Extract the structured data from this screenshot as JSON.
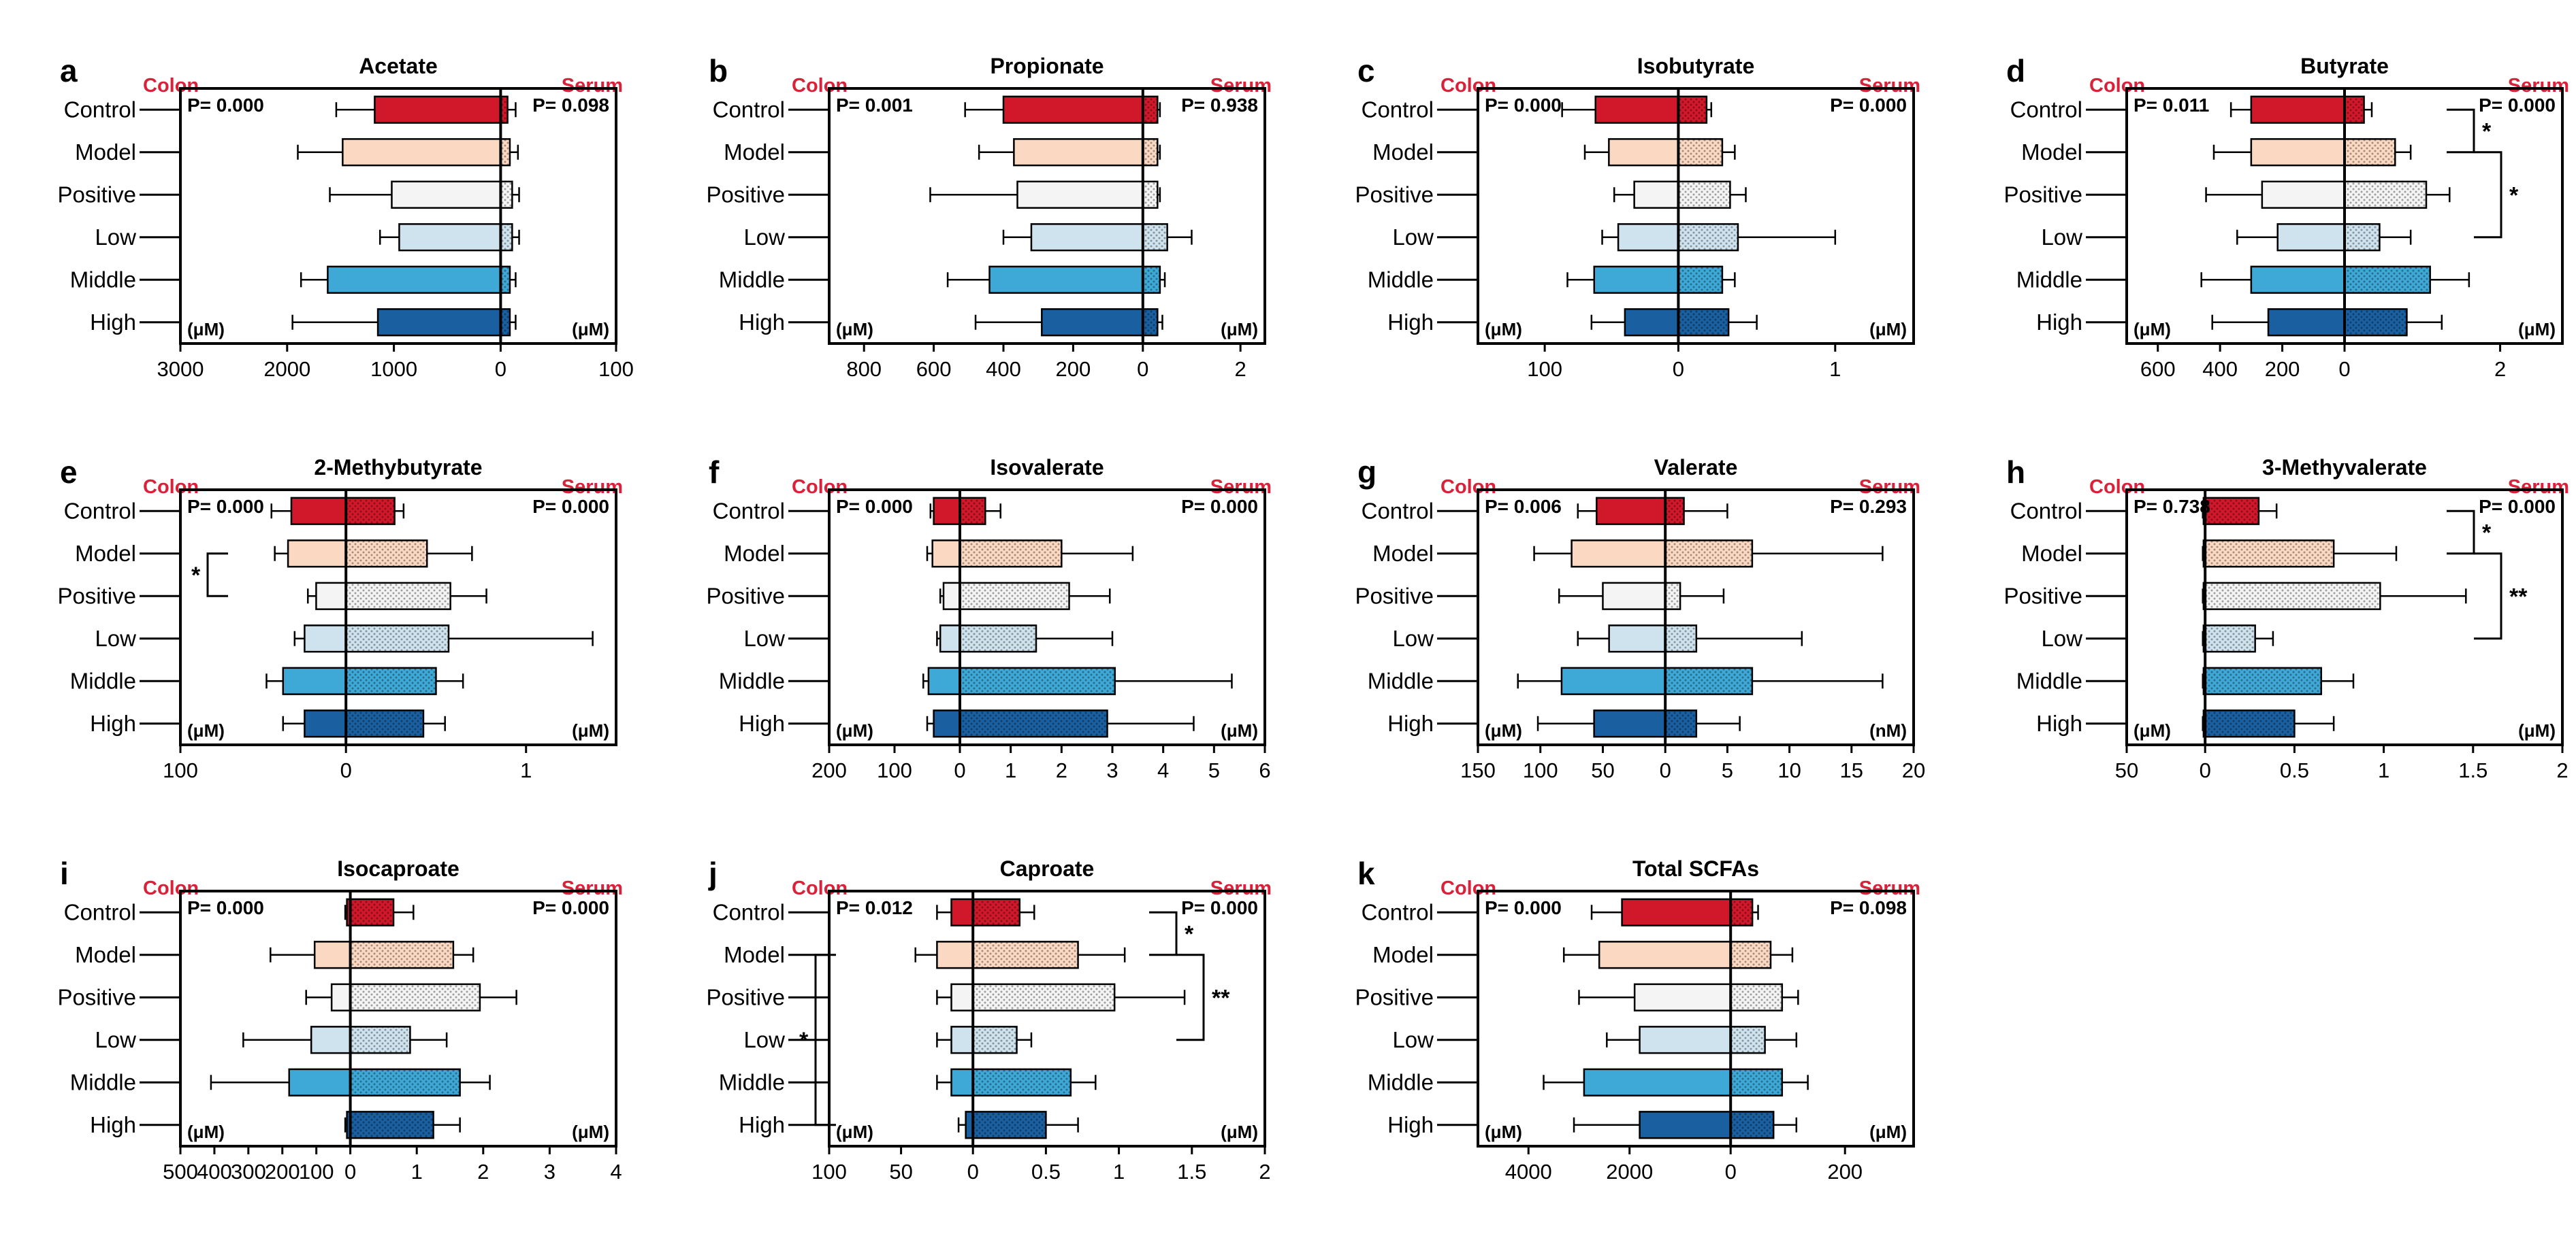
{
  "figure": {
    "groups": [
      "Control",
      "Model",
      "Positive",
      "Low",
      "Middle",
      "High"
    ],
    "colors": [
      "#d0182a",
      "#fbd8c2",
      "#f4f4f4",
      "#cfe3ef",
      "#3ea8d6",
      "#1a5f9f"
    ],
    "accent_color": "#d9213a",
    "colon_label": "Colon",
    "serum_label": "Serum"
  },
  "chart_data": [
    {
      "letter": "a",
      "title": "Acetate",
      "type": "bar",
      "colon_p": "P= 0.000",
      "serum_p": "P= 0.098",
      "colon_unit": "(μM)",
      "serum_unit": "(μM)",
      "colon": {
        "xlim": [
          3000,
          0
        ],
        "ticks": [
          3000,
          2000,
          1000,
          0
        ],
        "values": [
          1180,
          1480,
          1020,
          950,
          1620,
          1150
        ],
        "errors": [
          360,
          420,
          580,
          180,
          250,
          800
        ]
      },
      "serum": {
        "xlim": [
          0,
          100
        ],
        "ticks": [
          100
        ],
        "values": [
          6,
          8,
          10,
          10,
          8,
          8
        ],
        "errors": [
          7,
          7,
          6,
          6,
          5,
          5
        ]
      },
      "brackets": []
    },
    {
      "letter": "b",
      "title": "Propionate",
      "type": "bar",
      "colon_p": "P= 0.001",
      "serum_p": "P= 0.938",
      "colon_unit": "(μM)",
      "serum_unit": "(μM)",
      "colon": {
        "xlim": [
          900,
          0
        ],
        "ticks": [
          800,
          600,
          400,
          200,
          0
        ],
        "values": [
          400,
          370,
          360,
          320,
          440,
          290
        ],
        "errors": [
          110,
          100,
          250,
          80,
          120,
          190
        ]
      },
      "serum": {
        "xlim": [
          0,
          2.5
        ],
        "ticks": [
          2
        ],
        "values": [
          0.3,
          0.3,
          0.3,
          0.5,
          0.35,
          0.3
        ],
        "errors": [
          0.05,
          0.05,
          0.05,
          0.5,
          0.1,
          0.1
        ]
      },
      "brackets": []
    },
    {
      "letter": "c",
      "title": "Isobutyrate",
      "type": "bar",
      "colon_p": "P= 0.000",
      "serum_p": "P= 0.000",
      "colon_unit": "(μM)",
      "serum_unit": "(μM)",
      "colon": {
        "xlim": [
          150,
          0
        ],
        "ticks": [
          100,
          0
        ],
        "values": [
          62,
          52,
          33,
          45,
          63,
          40
        ],
        "errors": [
          25,
          18,
          15,
          12,
          20,
          25
        ]
      },
      "serum": {
        "xlim": [
          0,
          1.5
        ],
        "ticks": [
          1
        ],
        "values": [
          0.18,
          0.28,
          0.33,
          0.38,
          0.28,
          0.32
        ],
        "errors": [
          0.03,
          0.08,
          0.1,
          0.62,
          0.08,
          0.18
        ]
      },
      "brackets": []
    },
    {
      "letter": "d",
      "title": "Butyrate",
      "type": "bar",
      "colon_p": "P= 0.011",
      "serum_p": "P= 0.000",
      "colon_unit": "(μM)",
      "serum_unit": "(μM)",
      "colon": {
        "xlim": [
          700,
          0
        ],
        "ticks": [
          600,
          400,
          200,
          0
        ],
        "values": [
          300,
          300,
          265,
          215,
          300,
          245
        ],
        "errors": [
          65,
          120,
          180,
          130,
          160,
          180
        ]
      },
      "serum": {
        "xlim": [
          0,
          2.8
        ],
        "ticks": [
          2
        ],
        "values": [
          0.25,
          0.65,
          1.05,
          0.45,
          1.1,
          0.8
        ],
        "errors": [
          0.1,
          0.2,
          0.3,
          0.4,
          0.5,
          0.45
        ]
      },
      "brackets": [
        {
          "side": "serum",
          "from": 0,
          "to": 1,
          "label": "*"
        },
        {
          "side": "serum",
          "from": 1,
          "to": 3,
          "label": "*"
        }
      ]
    },
    {
      "letter": "e",
      "title": "2-Methybutyrate",
      "type": "bar",
      "colon_p": "P= 0.000",
      "serum_p": "P= 0.000",
      "colon_unit": "(μM)",
      "serum_unit": "(μM)",
      "colon": {
        "xlim": [
          100,
          0
        ],
        "ticks": [
          100,
          0
        ],
        "values": [
          33,
          35,
          18,
          25,
          38,
          25
        ],
        "errors": [
          12,
          8,
          5,
          6,
          10,
          13
        ]
      },
      "serum": {
        "xlim": [
          0,
          1.5
        ],
        "ticks": [
          1
        ],
        "values": [
          0.27,
          0.45,
          0.58,
          0.57,
          0.5,
          0.43
        ],
        "errors": [
          0.05,
          0.25,
          0.2,
          0.8,
          0.15,
          0.12
        ]
      },
      "brackets": [
        {
          "side": "colon",
          "from": 1,
          "to": 2,
          "label": "*"
        }
      ]
    },
    {
      "letter": "f",
      "title": "Isovalerate",
      "type": "bar",
      "colon_p": "P= 0.000",
      "serum_p": "P= 0.000",
      "colon_unit": "(μM)",
      "serum_unit": "(μM)",
      "colon": {
        "xlim": [
          200,
          0
        ],
        "ticks": [
          200,
          100,
          0
        ],
        "values": [
          40,
          42,
          25,
          30,
          48,
          40
        ],
        "errors": [
          5,
          8,
          5,
          5,
          8,
          10
        ]
      },
      "serum": {
        "xlim": [
          0,
          6
        ],
        "ticks": [
          1,
          2,
          3,
          4,
          5,
          6
        ],
        "values": [
          0.5,
          2.0,
          2.15,
          1.5,
          3.05,
          2.9
        ],
        "errors": [
          0.3,
          1.4,
          0.8,
          1.5,
          2.3,
          1.7
        ]
      },
      "brackets": []
    },
    {
      "letter": "g",
      "title": "Valerate",
      "type": "bar",
      "colon_p": "P= 0.006",
      "serum_p": "P= 0.293",
      "colon_unit": "(μM)",
      "serum_unit": "(nM)",
      "colon": {
        "xlim": [
          150,
          0
        ],
        "ticks": [
          150,
          100,
          50,
          0
        ],
        "values": [
          55,
          75,
          50,
          45,
          83,
          57
        ],
        "errors": [
          15,
          30,
          35,
          25,
          35,
          45
        ]
      },
      "serum": {
        "xlim": [
          0,
          20
        ],
        "ticks": [
          5,
          10,
          15,
          20
        ],
        "values": [
          1.5,
          7.0,
          1.2,
          2.5,
          7.0,
          2.5
        ],
        "errors": [
          3.5,
          10.5,
          3.5,
          8.5,
          10.5,
          3.5
        ]
      },
      "brackets": []
    },
    {
      "letter": "h",
      "title": "3-Methyvalerate",
      "type": "bar",
      "colon_p": "P= 0.738",
      "serum_p": "P= 0.000",
      "colon_unit": "(μM)",
      "serum_unit": "(μM)",
      "colon": {
        "xlim": [
          50,
          0
        ],
        "ticks": [
          50,
          0
        ],
        "values": [
          1,
          1,
          1,
          1,
          1,
          1
        ],
        "errors": [
          0.5,
          0.5,
          0.5,
          0.5,
          0.5,
          0.5
        ]
      },
      "serum": {
        "xlim": [
          0,
          2
        ],
        "ticks": [
          0.5,
          1,
          1.5,
          2
        ],
        "values": [
          0.3,
          0.72,
          0.98,
          0.28,
          0.65,
          0.5
        ],
        "errors": [
          0.1,
          0.35,
          0.48,
          0.1,
          0.18,
          0.22
        ]
      },
      "brackets": [
        {
          "side": "serum",
          "from": 0,
          "to": 1,
          "label": "*"
        },
        {
          "side": "serum",
          "from": 1,
          "to": 3,
          "label": "**"
        }
      ]
    },
    {
      "letter": "i",
      "title": "Isocaproate",
      "type": "bar",
      "colon_p": "P= 0.000",
      "serum_p": "P= 0.000",
      "colon_unit": "(μM)",
      "serum_unit": "(μM)",
      "colon": {
        "xlim": [
          500,
          0
        ],
        "ticks": [
          500,
          400,
          300,
          200,
          100,
          0
        ],
        "values": [
          10,
          105,
          55,
          115,
          180,
          10
        ],
        "errors": [
          5,
          130,
          75,
          200,
          230,
          5
        ]
      },
      "serum": {
        "xlim": [
          0,
          4
        ],
        "ticks": [
          1,
          2,
          3,
          4
        ],
        "values": [
          0.65,
          1.55,
          1.95,
          0.9,
          1.65,
          1.25
        ],
        "errors": [
          0.3,
          0.3,
          0.55,
          0.55,
          0.45,
          0.4
        ]
      },
      "brackets": []
    },
    {
      "letter": "j",
      "title": "Caproate",
      "type": "bar",
      "colon_p": "P= 0.012",
      "serum_p": "P= 0.000",
      "colon_unit": "(μM)",
      "serum_unit": "(μM)",
      "colon": {
        "xlim": [
          100,
          0
        ],
        "ticks": [
          100,
          50,
          0
        ],
        "values": [
          15,
          25,
          15,
          15,
          15,
          5
        ],
        "errors": [
          10,
          15,
          10,
          10,
          10,
          5
        ]
      },
      "serum": {
        "xlim": [
          0,
          2
        ],
        "ticks": [
          0.5,
          1,
          1.5,
          2
        ],
        "values": [
          0.32,
          0.72,
          0.97,
          0.3,
          0.67,
          0.5
        ],
        "errors": [
          0.1,
          0.32,
          0.48,
          0.1,
          0.17,
          0.22
        ]
      },
      "brackets": [
        {
          "side": "serum",
          "from": 0,
          "to": 1,
          "label": "*"
        },
        {
          "side": "serum",
          "from": 1,
          "to": 3,
          "label": "**"
        },
        {
          "side": "colon",
          "from": 1,
          "to": 5,
          "label": "*"
        }
      ]
    },
    {
      "letter": "k",
      "title": "Total SCFAs",
      "type": "bar",
      "colon_p": "P= 0.000",
      "serum_p": "P= 0.098",
      "colon_unit": "(μM)",
      "serum_unit": "(μM)",
      "colon": {
        "xlim": [
          5000,
          0
        ],
        "ticks": [
          4000,
          2000,
          0
        ],
        "values": [
          2150,
          2600,
          1900,
          1800,
          2900,
          1800
        ],
        "errors": [
          600,
          700,
          1100,
          650,
          800,
          1300
        ]
      },
      "serum": {
        "xlim": [
          0,
          320
        ],
        "ticks": [
          200
        ],
        "values": [
          38,
          70,
          90,
          60,
          90,
          75
        ],
        "errors": [
          10,
          38,
          28,
          55,
          45,
          40
        ]
      },
      "brackets": []
    }
  ]
}
